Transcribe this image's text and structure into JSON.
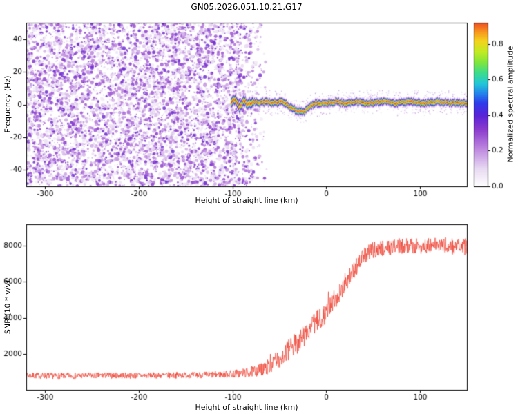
{
  "figure": {
    "title": "GN05.2026.051.10.21.G17"
  },
  "colors": {
    "background": "#ffffff",
    "axis": "#000000",
    "snr_line": "#ee3626"
  },
  "chart_data": [
    {
      "type": "heatmap",
      "title": "GN05.2026.051.10.21.G17",
      "xlabel": "Height of straight line (km)",
      "ylabel": "Frequency (Hz)",
      "xlim": [
        -320,
        150
      ],
      "ylim": [
        -50,
        50
      ],
      "xticks": [
        -300,
        -200,
        -100,
        0,
        100
      ],
      "yticks": [
        -40,
        -20,
        0,
        20,
        40
      ],
      "grid": false,
      "colorbar": {
        "label": "Normalized spectral amplitude",
        "ticks": [
          "0.0",
          "0.2",
          "0.4",
          "0.6",
          "0.8"
        ],
        "tick_values": [
          0.0,
          0.2,
          0.4,
          0.6,
          0.8
        ],
        "vmax": 0.92
      },
      "colormap": [
        [
          0.0,
          "#ffffff"
        ],
        [
          0.1,
          "#e8daf2"
        ],
        [
          0.22,
          "#bb82de"
        ],
        [
          0.32,
          "#8c3ccd"
        ],
        [
          0.4,
          "#5a23d7"
        ],
        [
          0.47,
          "#2d3ceb"
        ],
        [
          0.53,
          "#238ceb"
        ],
        [
          0.58,
          "#23c8d7"
        ],
        [
          0.64,
          "#3cdc8c"
        ],
        [
          0.7,
          "#82e63c"
        ],
        [
          0.76,
          "#c3eb23"
        ],
        [
          0.82,
          "#f5d21e"
        ],
        [
          0.87,
          "#f8961e"
        ],
        [
          0.92,
          "#f05023"
        ],
        [
          1.0,
          "#e1192d"
        ]
      ],
      "noise_region": {
        "x_range": [
          -320,
          -62
        ],
        "fade_start": -100,
        "amp_range": [
          0.05,
          0.38
        ],
        "blob_count": 7000
      },
      "signal_ridge": {
        "x_range": [
          -102,
          150
        ],
        "peak_amplitude": 0.95,
        "center_keypoints": [
          [
            -102,
            1
          ],
          [
            -97,
            4
          ],
          [
            -93,
            -2
          ],
          [
            -88,
            3
          ],
          [
            -84,
            0
          ],
          [
            -78,
            2
          ],
          [
            -72,
            1
          ],
          [
            -65,
            2
          ],
          [
            -58,
            1
          ],
          [
            -50,
            2
          ],
          [
            -44,
            1
          ],
          [
            -38,
            -2
          ],
          [
            -30,
            -4
          ],
          [
            -24,
            -4
          ],
          [
            -18,
            -1
          ],
          [
            -12,
            1
          ],
          [
            -5,
            1
          ],
          [
            0,
            1
          ],
          [
            10,
            2
          ],
          [
            20,
            1
          ],
          [
            30,
            2
          ],
          [
            45,
            1
          ],
          [
            60,
            2
          ],
          [
            75,
            1
          ],
          [
            90,
            2
          ],
          [
            105,
            1
          ],
          [
            120,
            2
          ],
          [
            135,
            1
          ],
          [
            150,
            1
          ]
        ]
      }
    },
    {
      "type": "line",
      "xlabel": "Height of straight line (km)",
      "ylabel": "SNR (10 * v/v)",
      "xlim": [
        -320,
        150
      ],
      "ylim": [
        0,
        9200
      ],
      "xticks": [
        -300,
        -200,
        -100,
        0,
        100
      ],
      "yticks": [
        2000,
        4000,
        6000,
        8000
      ],
      "grid": false,
      "series": [
        {
          "name": "SNR",
          "color": "#ee3626",
          "base_keypoints": [
            [
              -320,
              790
            ],
            [
              -280,
              780
            ],
            [
              -240,
              800
            ],
            [
              -200,
              790
            ],
            [
              -160,
              810
            ],
            [
              -130,
              830
            ],
            [
              -110,
              860
            ],
            [
              -95,
              900
            ],
            [
              -85,
              950
            ],
            [
              -75,
              1050
            ],
            [
              -65,
              1200
            ],
            [
              -55,
              1500
            ],
            [
              -48,
              1800
            ],
            [
              -42,
              2100
            ],
            [
              -36,
              2400
            ],
            [
              -30,
              2700
            ],
            [
              -25,
              2950
            ],
            [
              -20,
              3200
            ],
            [
              -15,
              3500
            ],
            [
              -10,
              3800
            ],
            [
              -5,
              4050
            ],
            [
              0,
              4300
            ],
            [
              5,
              4700
            ],
            [
              10,
              5100
            ],
            [
              15,
              5500
            ],
            [
              20,
              5900
            ],
            [
              25,
              6300
            ],
            [
              30,
              6700
            ],
            [
              35,
              7100
            ],
            [
              40,
              7400
            ],
            [
              45,
              7600
            ],
            [
              50,
              7750
            ],
            [
              60,
              7900
            ],
            [
              70,
              7950
            ],
            [
              80,
              8000
            ],
            [
              90,
              8000
            ],
            [
              100,
              7980
            ],
            [
              110,
              8000
            ],
            [
              120,
              8050
            ],
            [
              130,
              8000
            ],
            [
              140,
              7950
            ],
            [
              150,
              7950
            ]
          ],
          "noise_keypoints": [
            [
              -320,
              170
            ],
            [
              -200,
              170
            ],
            [
              -140,
              180
            ],
            [
              -110,
              200
            ],
            [
              -90,
              260
            ],
            [
              -75,
              320
            ],
            [
              -60,
              420
            ],
            [
              -50,
              520
            ],
            [
              -40,
              600
            ],
            [
              -30,
              650
            ],
            [
              -20,
              650
            ],
            [
              -10,
              620
            ],
            [
              0,
              600
            ],
            [
              10,
              560
            ],
            [
              20,
              520
            ],
            [
              30,
              500
            ],
            [
              40,
              480
            ],
            [
              60,
              450
            ],
            [
              80,
              430
            ],
            [
              100,
              430
            ],
            [
              120,
              450
            ],
            [
              150,
              470
            ]
          ]
        }
      ]
    }
  ]
}
